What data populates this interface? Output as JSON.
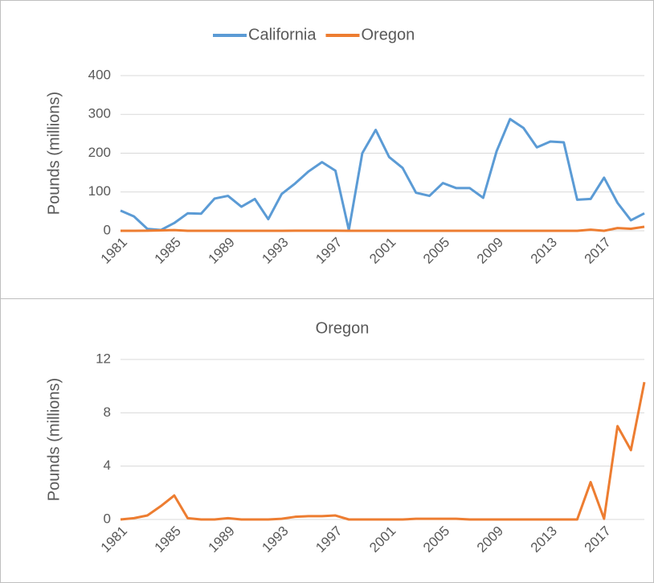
{
  "chart_data": [
    {
      "type": "line",
      "ylabel": "Pounds (millions)",
      "legend": "top",
      "x": [
        1981,
        1982,
        1983,
        1984,
        1985,
        1986,
        1987,
        1988,
        1989,
        1990,
        1991,
        1992,
        1993,
        1994,
        1995,
        1996,
        1997,
        1998,
        1999,
        2000,
        2001,
        2002,
        2003,
        2004,
        2005,
        2006,
        2007,
        2008,
        2009,
        2010,
        2011,
        2012,
        2013,
        2014,
        2015,
        2016,
        2017,
        2018,
        2019,
        2020
      ],
      "xlim": [
        1981,
        2020
      ],
      "xticks": [
        1981,
        1985,
        1989,
        1993,
        1997,
        2001,
        2005,
        2009,
        2013,
        2017
      ],
      "ylim": [
        0,
        400
      ],
      "yticks": [
        0,
        100,
        200,
        300,
        400
      ],
      "grid": true,
      "series": [
        {
          "name": "California",
          "color": "#5b9bd5",
          "values": [
            52,
            37,
            5,
            2,
            20,
            45,
            44,
            83,
            90,
            62,
            82,
            30,
            95,
            122,
            153,
            177,
            155,
            2,
            200,
            260,
            190,
            162,
            98,
            90,
            123,
            110,
            110,
            85,
            205,
            288,
            265,
            215,
            230,
            228,
            80,
            82,
            137,
            72,
            27,
            45
          ]
        },
        {
          "name": "Oregon",
          "color": "#ed7d31",
          "values": [
            0,
            0.1,
            0.3,
            1,
            1.8,
            0.1,
            0,
            0,
            0.1,
            0,
            0,
            0,
            0.05,
            0.2,
            0.25,
            0.25,
            0.3,
            0,
            0,
            0,
            0,
            0,
            0.05,
            0.05,
            0.05,
            0.05,
            0,
            0,
            0,
            0,
            0,
            0,
            0,
            0,
            0,
            2.8,
            0.05,
            7,
            5.2,
            10.3
          ]
        }
      ]
    },
    {
      "type": "line",
      "title": "Oregon",
      "ylabel": "Pounds (millions)",
      "color": "#ed7d31",
      "x": [
        1981,
        1982,
        1983,
        1984,
        1985,
        1986,
        1987,
        1988,
        1989,
        1990,
        1991,
        1992,
        1993,
        1994,
        1995,
        1996,
        1997,
        1998,
        1999,
        2000,
        2001,
        2002,
        2003,
        2004,
        2005,
        2006,
        2007,
        2008,
        2009,
        2010,
        2011,
        2012,
        2013,
        2014,
        2015,
        2016,
        2017,
        2018,
        2019,
        2020
      ],
      "xlim": [
        1981,
        2020
      ],
      "xticks": [
        1981,
        1985,
        1989,
        1993,
        1997,
        2001,
        2005,
        2009,
        2013,
        2017
      ],
      "ylim": [
        0,
        12
      ],
      "yticks": [
        0,
        4,
        8,
        12
      ],
      "grid": true,
      "values": [
        0,
        0.1,
        0.3,
        1,
        1.8,
        0.1,
        0,
        0,
        0.1,
        0,
        0,
        0,
        0.05,
        0.2,
        0.25,
        0.25,
        0.3,
        0,
        0,
        0,
        0,
        0,
        0.05,
        0.05,
        0.05,
        0.05,
        0,
        0,
        0,
        0,
        0,
        0,
        0,
        0,
        0,
        2.8,
        0.05,
        7,
        5.2,
        10.3
      ]
    }
  ]
}
